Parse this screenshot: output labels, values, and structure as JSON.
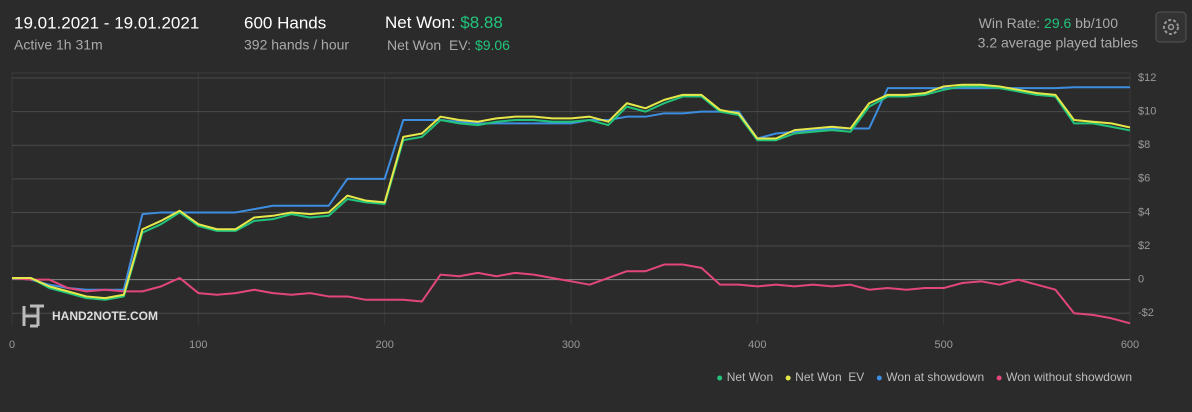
{
  "header": {
    "date_range": "19.01.2021 - 19.01.2021",
    "active": "Active 1h 31m",
    "hands": "600 Hands",
    "hands_per_hour": "392 hands / hour",
    "net_won_label": "Net Won:",
    "net_won_value": "$8.88",
    "net_won_ev_label": "Net Won  EV:",
    "net_won_ev_value": "$9.06",
    "win_rate_label": "Win Rate:",
    "win_rate_value": "29.6",
    "win_rate_unit": "bb/100",
    "tables": "3.2 average played tables",
    "watermark": "HAND2NOTE.COM"
  },
  "chart_data": {
    "type": "line",
    "x": [
      0,
      10,
      20,
      30,
      40,
      50,
      60,
      70,
      80,
      90,
      100,
      110,
      120,
      130,
      140,
      150,
      160,
      170,
      180,
      190,
      200,
      210,
      220,
      230,
      240,
      250,
      260,
      270,
      280,
      290,
      300,
      310,
      320,
      330,
      340,
      350,
      360,
      370,
      380,
      390,
      400,
      410,
      420,
      430,
      440,
      450,
      460,
      470,
      480,
      490,
      500,
      510,
      520,
      530,
      540,
      550,
      560,
      570,
      580,
      590,
      600
    ],
    "series": [
      {
        "name": "Net Won",
        "color": "#22c47c",
        "values": [
          0.1,
          0.1,
          -0.5,
          -0.8,
          -1.1,
          -1.2,
          -1.0,
          2.8,
          3.3,
          4.0,
          3.2,
          2.9,
          2.9,
          3.5,
          3.6,
          3.9,
          3.7,
          3.8,
          4.8,
          4.6,
          4.5,
          8.3,
          8.5,
          9.5,
          9.3,
          9.2,
          9.4,
          9.5,
          9.5,
          9.4,
          9.4,
          9.5,
          9.2,
          10.3,
          10.0,
          10.5,
          10.9,
          10.9,
          10.0,
          9.8,
          8.3,
          8.3,
          8.7,
          8.8,
          8.9,
          8.8,
          10.3,
          10.9,
          10.9,
          11.0,
          11.3,
          11.5,
          11.5,
          11.4,
          11.2,
          11.0,
          10.9,
          9.3,
          9.3,
          9.1,
          8.88
        ]
      },
      {
        "name": "Net Won  EV",
        "color": "#e6e84a",
        "values": [
          0.1,
          0.1,
          -0.4,
          -0.7,
          -1.0,
          -1.1,
          -0.9,
          3.0,
          3.5,
          4.1,
          3.3,
          3.0,
          3.0,
          3.7,
          3.8,
          4.0,
          3.9,
          4.0,
          5.0,
          4.7,
          4.6,
          8.5,
          8.7,
          9.7,
          9.5,
          9.4,
          9.6,
          9.7,
          9.7,
          9.6,
          9.6,
          9.7,
          9.4,
          10.5,
          10.2,
          10.7,
          11.0,
          11.0,
          10.1,
          9.9,
          8.4,
          8.4,
          8.9,
          9.0,
          9.1,
          9.0,
          10.5,
          11.0,
          11.0,
          11.1,
          11.5,
          11.6,
          11.6,
          11.5,
          11.3,
          11.1,
          11.0,
          9.5,
          9.4,
          9.3,
          9.06
        ]
      },
      {
        "name": "Won at showdown",
        "color": "#3d8ee0",
        "values": [
          0.1,
          0,
          -0.3,
          -0.5,
          -0.6,
          -0.6,
          -0.6,
          3.9,
          4.0,
          4.0,
          4.0,
          4.0,
          4.0,
          4.2,
          4.4,
          4.4,
          4.4,
          4.4,
          6.0,
          6.0,
          6.0,
          9.5,
          9.5,
          9.5,
          9.4,
          9.3,
          9.3,
          9.3,
          9.3,
          9.3,
          9.3,
          9.5,
          9.5,
          9.7,
          9.7,
          9.9,
          9.9,
          10.0,
          10.0,
          10.0,
          8.4,
          8.7,
          8.8,
          8.9,
          9.0,
          9.0,
          9.0,
          11.4,
          11.4,
          11.4,
          11.4,
          11.4,
          11.4,
          11.4,
          11.4,
          11.4,
          11.4,
          11.45,
          11.45,
          11.45,
          11.45
        ]
      },
      {
        "name": "Won without showdown",
        "color": "#e2467c",
        "values": [
          0.1,
          0,
          0,
          -0.5,
          -0.7,
          -0.6,
          -0.7,
          -0.7,
          -0.4,
          0.1,
          -0.8,
          -0.9,
          -0.8,
          -0.6,
          -0.8,
          -0.9,
          -0.8,
          -1.0,
          -1.0,
          -1.2,
          -1.2,
          -1.2,
          -1.3,
          0.3,
          0.2,
          0.4,
          0.2,
          0.4,
          0.3,
          0.1,
          -0.1,
          -0.3,
          0.1,
          0.5,
          0.5,
          0.9,
          0.9,
          0.7,
          -0.3,
          -0.3,
          -0.4,
          -0.3,
          -0.4,
          -0.3,
          -0.4,
          -0.3,
          -0.6,
          -0.5,
          -0.6,
          -0.5,
          -0.5,
          -0.2,
          -0.1,
          -0.3,
          0,
          -0.3,
          -0.6,
          -2.0,
          -2.1,
          -2.3,
          -2.6
        ]
      }
    ],
    "xlim": [
      0,
      600
    ],
    "xticks": [
      0,
      100,
      200,
      300,
      400,
      500,
      600
    ],
    "ylim": [
      -2.7,
      12.3
    ],
    "yticks": [
      {
        "value": -2,
        "label": "-$2"
      },
      0,
      {
        "value": 2,
        "label": "$2"
      },
      {
        "value": 4,
        "label": "$4"
      },
      {
        "value": 6,
        "label": "$6"
      },
      {
        "value": 8,
        "label": "$8"
      },
      {
        "value": 10,
        "label": "$10"
      },
      {
        "value": 12,
        "label": "$12"
      }
    ],
    "grid": true,
    "legend": "bottom-right"
  }
}
